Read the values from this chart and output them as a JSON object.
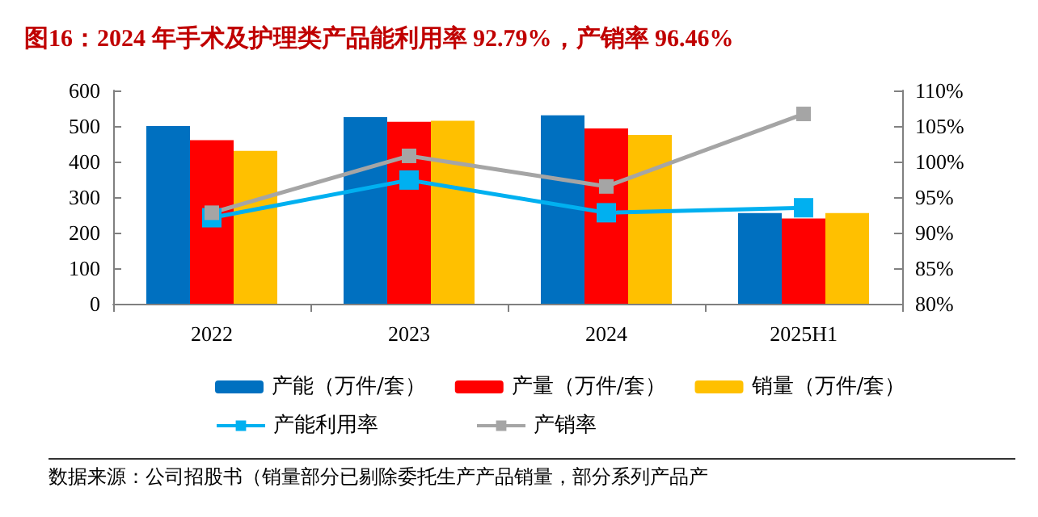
{
  "chart_data": {
    "type": "bar",
    "title": "图16：2024 年手术及护理类产品能利用率 92.79%，产销率 96.46%",
    "annotations": [
      "数据来源：公司招股书（销量部分已剔除委托生产产品销量，部分系列产品产"
    ],
    "categories": [
      "2022",
      "2023",
      "2024",
      "2025H1"
    ],
    "series": [
      {
        "name": "产能（万件/套）",
        "color": "#0070c0",
        "values": [
          500,
          525,
          530,
          255
        ]
      },
      {
        "name": "产量（万件/套）",
        "color": "#ff0000",
        "values": [
          460,
          512,
          493,
          240
        ]
      },
      {
        "name": "销量（万件/套）",
        "color": "#ffc000",
        "values": [
          430,
          515,
          475,
          255
        ]
      },
      {
        "name": "产能利用率",
        "type": "line",
        "axis": "y2",
        "color": "#00b0f0",
        "values": [
          92.1,
          97.4,
          92.8,
          93.5
        ]
      },
      {
        "name": "产销率",
        "type": "line",
        "axis": "y2",
        "color": "#a5a5a5",
        "values": [
          92.8,
          100.8,
          96.5,
          106.7
        ]
      }
    ],
    "ylim": [
      0,
      600
    ],
    "yticks": [
      0,
      100,
      200,
      300,
      400,
      500,
      600
    ],
    "y2lim": [
      80,
      110
    ],
    "y2ticks": [
      {
        "value": 80,
        "label": "80%"
      },
      {
        "value": 85,
        "label": "85%"
      },
      {
        "value": 90,
        "label": "90%"
      },
      {
        "value": 95,
        "label": "95%"
      },
      {
        "value": 100,
        "label": "100%"
      },
      {
        "value": 105,
        "label": "105%"
      },
      {
        "value": 110,
        "label": "110%"
      }
    ],
    "marker": "square",
    "line_style": "solid",
    "legend": "bottom",
    "grid": false
  }
}
